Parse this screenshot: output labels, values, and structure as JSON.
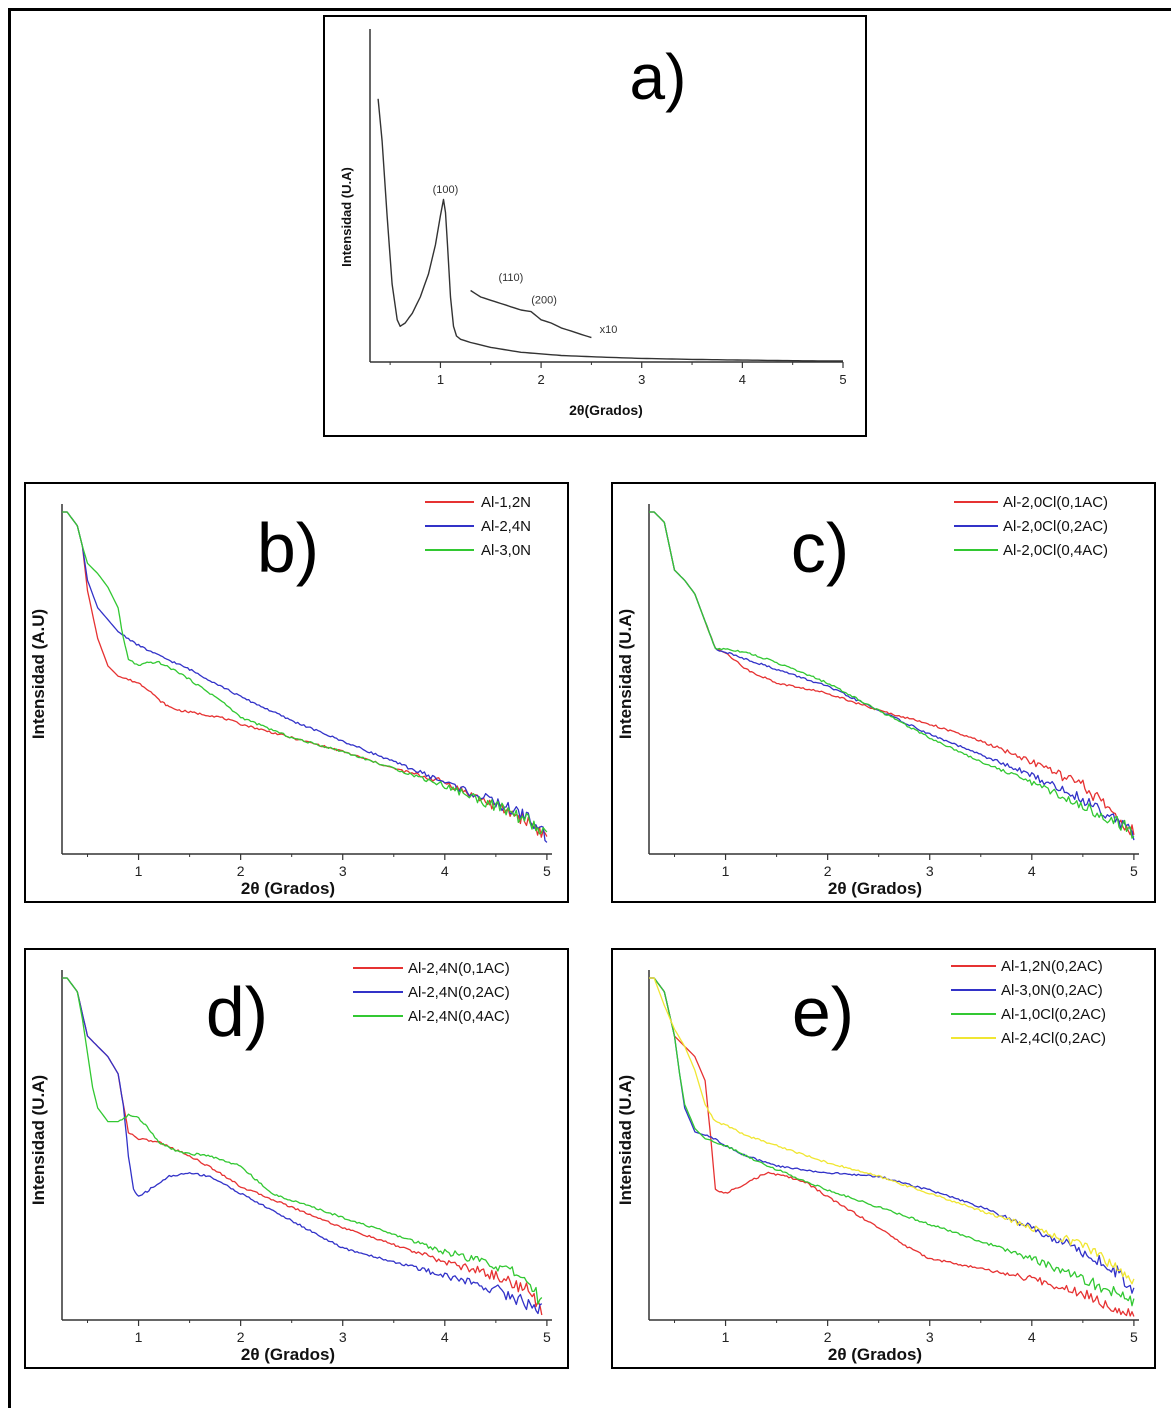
{
  "chart_data": [
    {
      "panel_label": "a)",
      "type": "line",
      "xlabel": "2θ(Grados)",
      "ylabel": "Intensidad (U.A)",
      "xlim": [
        0.3,
        5
      ],
      "ylim": [
        0,
        100
      ],
      "xticks": [
        "1",
        "2",
        "3",
        "4",
        "5"
      ],
      "xtick_values": [
        1,
        2,
        3,
        4,
        5
      ],
      "annotations": [
        {
          "text": "(100)",
          "x": 1.05,
          "y": 52
        },
        {
          "text": "(110)",
          "x": 1.7,
          "y": 25
        },
        {
          "text": "(200)",
          "x": 2.03,
          "y": 18
        },
        {
          "text": "x10",
          "x": 2.67,
          "y": 9
        }
      ],
      "series": [
        {
          "color": "#333333",
          "x": [
            0.38,
            0.42,
            0.47,
            0.52,
            0.57,
            0.6,
            0.65,
            0.72,
            0.8,
            0.88,
            0.95,
            1.0,
            1.03,
            1.05,
            1.07,
            1.1,
            1.13,
            1.16,
            1.2,
            1.3,
            1.5,
            1.8,
            2.2,
            2.6,
            3.0,
            3.5,
            4.0,
            4.5,
            5.0
          ],
          "y": [
            81,
            68,
            45,
            24,
            13,
            11,
            12,
            15,
            20,
            27,
            36,
            45,
            50,
            46,
            36,
            20,
            11,
            8,
            7,
            6,
            4.5,
            3,
            2,
            1.5,
            1.1,
            0.8,
            0.6,
            0.4,
            0.3
          ]
        },
        {
          "color": "#333333",
          "x": [
            1.3,
            1.4,
            1.5,
            1.6,
            1.7,
            1.8,
            1.9,
            2.0,
            2.1,
            2.2,
            2.3,
            2.4,
            2.5
          ],
          "y": [
            22,
            20,
            19,
            18,
            17,
            16,
            15.5,
            13,
            12,
            10.5,
            9.5,
            8.5,
            7.5
          ]
        }
      ]
    },
    {
      "panel_label": "b)",
      "type": "line",
      "xlabel": "2θ (Grados)",
      "ylabel": "Intensidad (A.U)",
      "xlim": [
        0.25,
        5.05
      ],
      "ylim": [
        0,
        100
      ],
      "xticks": [
        "1",
        "2",
        "3",
        "4",
        "5"
      ],
      "xtick_values": [
        1,
        2,
        3,
        4,
        5
      ],
      "legend_position": "top-right",
      "series": [
        {
          "name": "Al-1,2N",
          "color": "#e63232",
          "x": [
            0.25,
            0.3,
            0.4,
            0.45,
            0.5,
            0.6,
            0.7,
            0.8,
            0.9,
            1.0,
            1.1,
            1.2,
            1.3,
            1.4,
            1.6,
            1.8,
            2.0,
            2.5,
            3.0,
            3.5,
            4.0,
            4.5,
            4.8,
            5.0
          ],
          "y": [
            100,
            100,
            96,
            90,
            77,
            63,
            55,
            52,
            51,
            50,
            48,
            45,
            43,
            42,
            41,
            40,
            38,
            34,
            30,
            25,
            21,
            14,
            10,
            5
          ]
        },
        {
          "name": "Al-2,4N",
          "color": "#3232c8",
          "x": [
            0.25,
            0.3,
            0.4,
            0.45,
            0.5,
            0.6,
            0.8,
            1.0,
            1.2,
            1.5,
            2.0,
            2.5,
            3.0,
            3.5,
            4.0,
            4.5,
            4.8,
            5.0
          ],
          "y": [
            100,
            100,
            96,
            90,
            80,
            72,
            65,
            61,
            58,
            54,
            46,
            39,
            33,
            27,
            21,
            15,
            11,
            5
          ]
        },
        {
          "name": "Al-3,0N",
          "color": "#32c832",
          "x": [
            0.25,
            0.3,
            0.4,
            0.45,
            0.5,
            0.6,
            0.7,
            0.8,
            0.85,
            0.9,
            1.0,
            1.1,
            1.2,
            1.4,
            1.6,
            1.8,
            2.0,
            2.5,
            3.0,
            3.5,
            4.0,
            4.5,
            4.8,
            5.0
          ],
          "y": [
            100,
            100,
            96,
            90,
            85,
            82,
            78,
            72,
            63,
            57,
            55,
            56,
            56,
            53,
            49,
            45,
            40,
            34,
            30,
            25,
            20,
            14,
            10,
            5
          ]
        }
      ]
    },
    {
      "panel_label": "c)",
      "type": "line",
      "xlabel": "2θ (Grados)",
      "ylabel": "Intensidad (U.A)",
      "xlim": [
        0.25,
        5.05
      ],
      "ylim": [
        0,
        100
      ],
      "xticks": [
        "1",
        "2",
        "3",
        "4",
        "5"
      ],
      "xtick_values": [
        1,
        2,
        3,
        4,
        5
      ],
      "legend_position": "top-right",
      "series": [
        {
          "name": "Al-2,0Cl(0,1AC)",
          "color": "#e63232",
          "x": [
            0.25,
            0.3,
            0.4,
            0.45,
            0.5,
            0.6,
            0.7,
            0.8,
            0.9,
            1.0,
            1.2,
            1.5,
            2.0,
            2.5,
            3.0,
            3.5,
            4.0,
            4.5,
            4.8,
            5.0
          ],
          "y": [
            100,
            100,
            97,
            90,
            83,
            80,
            76,
            68,
            60,
            59,
            54,
            50,
            47,
            42,
            38,
            33,
            27,
            20,
            12,
            6
          ]
        },
        {
          "name": "Al-2,0Cl(0,2AC)",
          "color": "#3232c8",
          "x": [
            0.25,
            0.3,
            0.4,
            0.45,
            0.5,
            0.6,
            0.7,
            0.8,
            0.9,
            1.0,
            1.2,
            1.5,
            2.0,
            2.5,
            3.0,
            3.5,
            4.0,
            4.5,
            4.8,
            5.0
          ],
          "y": [
            100,
            100,
            97,
            90,
            83,
            80,
            76,
            68,
            60,
            59,
            57,
            54,
            49,
            42,
            35,
            29,
            23,
            16,
            11,
            6
          ]
        },
        {
          "name": "Al-2,0Cl(0,4AC)",
          "color": "#32c832",
          "x": [
            0.25,
            0.3,
            0.4,
            0.45,
            0.5,
            0.6,
            0.7,
            0.8,
            0.9,
            1.0,
            1.2,
            1.5,
            2.0,
            2.5,
            3.0,
            3.5,
            4.0,
            4.5,
            4.8,
            5.0
          ],
          "y": [
            100,
            100,
            97,
            90,
            83,
            80,
            76,
            68,
            60,
            60,
            59,
            56,
            50,
            42,
            34,
            27,
            21,
            14,
            10,
            6
          ]
        }
      ]
    },
    {
      "panel_label": "d)",
      "type": "line",
      "xlabel": "2θ (Grados)",
      "ylabel": "Intensidad (U.A)",
      "xlim": [
        0.25,
        5.05
      ],
      "ylim": [
        0,
        100
      ],
      "xticks": [
        "1",
        "2",
        "3",
        "4",
        "5"
      ],
      "xtick_values": [
        1,
        2,
        3,
        4,
        5
      ],
      "legend_position": "top-right",
      "series": [
        {
          "name": "Al-2,4N(0,1AC)",
          "color": "#e63232",
          "x": [
            0.25,
            0.3,
            0.4,
            0.5,
            0.6,
            0.7,
            0.8,
            0.85,
            0.9,
            1.0,
            1.2,
            1.5,
            1.8,
            2.0,
            2.5,
            3.0,
            3.5,
            4.0,
            4.5,
            4.8,
            4.95
          ],
          "y": [
            100,
            100,
            96,
            83,
            80,
            77,
            72,
            63,
            55,
            53,
            52,
            48,
            43,
            39,
            33,
            27,
            22,
            17,
            13,
            9,
            3
          ]
        },
        {
          "name": "Al-2,4N(0,2AC)",
          "color": "#3232c8",
          "x": [
            0.25,
            0.3,
            0.4,
            0.5,
            0.6,
            0.7,
            0.8,
            0.85,
            0.9,
            0.95,
            1.0,
            1.1,
            1.3,
            1.5,
            1.7,
            2.0,
            2.5,
            3.0,
            3.5,
            4.0,
            4.5,
            4.8,
            4.95
          ],
          "y": [
            100,
            100,
            96,
            83,
            80,
            77,
            72,
            63,
            48,
            38,
            36,
            38,
            42,
            43,
            42,
            37,
            29,
            21,
            17,
            13,
            9,
            5,
            3
          ]
        },
        {
          "name": "Al-2,4N(0,4AC)",
          "color": "#32c832",
          "x": [
            0.25,
            0.3,
            0.4,
            0.45,
            0.5,
            0.55,
            0.6,
            0.7,
            0.8,
            0.9,
            1.0,
            1.1,
            1.2,
            1.4,
            1.7,
            2.0,
            2.3,
            2.5,
            3.0,
            3.5,
            4.0,
            4.5,
            4.8,
            4.95
          ],
          "y": [
            100,
            100,
            96,
            88,
            78,
            68,
            62,
            58,
            58,
            60,
            59,
            56,
            52,
            49,
            48,
            45,
            37,
            35,
            30,
            25,
            20,
            16,
            12,
            5
          ]
        }
      ]
    },
    {
      "panel_label": "e)",
      "type": "line",
      "xlabel": "2θ (Grados)",
      "ylabel": "Intensidad (U.A)",
      "xlim": [
        0.25,
        5.05
      ],
      "ylim": [
        0,
        100
      ],
      "xticks": [
        "1",
        "2",
        "3",
        "4",
        "5"
      ],
      "xtick_values": [
        1,
        2,
        3,
        4,
        5
      ],
      "legend_position": "top-right",
      "series": [
        {
          "name": "Al-1,2N(0,2AC)",
          "color": "#e63232",
          "x": [
            0.25,
            0.3,
            0.4,
            0.5,
            0.6,
            0.7,
            0.8,
            0.85,
            0.9,
            1.0,
            1.2,
            1.4,
            1.6,
            1.8,
            2.0,
            2.5,
            2.8,
            3.0,
            3.5,
            4.0,
            4.5,
            4.8,
            5.0
          ],
          "y": [
            100,
            100,
            96,
            83,
            80,
            77,
            70,
            55,
            38,
            37,
            40,
            43,
            42,
            40,
            36,
            27,
            21,
            18,
            15,
            12,
            8,
            4,
            2
          ]
        },
        {
          "name": "Al-3,0N(0,2AC)",
          "color": "#3232c8",
          "x": [
            0.25,
            0.3,
            0.4,
            0.5,
            0.55,
            0.6,
            0.7,
            0.8,
            0.9,
            1.0,
            1.2,
            1.5,
            2.0,
            2.5,
            3.0,
            3.5,
            4.0,
            4.5,
            4.8,
            5.0
          ],
          "y": [
            100,
            100,
            96,
            83,
            72,
            62,
            55,
            54,
            53,
            51,
            48,
            45,
            43,
            42,
            38,
            33,
            27,
            20,
            15,
            9
          ]
        },
        {
          "name": "Al-1,0Cl(0,2AC)",
          "color": "#32c832",
          "x": [
            0.25,
            0.3,
            0.4,
            0.5,
            0.55,
            0.6,
            0.7,
            0.8,
            0.9,
            1.0,
            1.2,
            1.5,
            2.0,
            2.5,
            3.0,
            3.5,
            4.0,
            4.5,
            4.8,
            5.0
          ],
          "y": [
            100,
            100,
            96,
            83,
            72,
            63,
            56,
            53,
            52,
            51,
            48,
            44,
            38,
            33,
            28,
            23,
            18,
            12,
            8,
            5
          ]
        },
        {
          "name": "Al-2,4Cl(0,2AC)",
          "color": "#f0e632",
          "x": [
            0.25,
            0.3,
            0.4,
            0.5,
            0.6,
            0.7,
            0.8,
            0.9,
            1.0,
            1.2,
            1.5,
            2.0,
            2.5,
            3.0,
            3.5,
            4.0,
            4.5,
            4.8,
            5.0
          ],
          "y": [
            100,
            100,
            92,
            85,
            80,
            73,
            63,
            58,
            57,
            54,
            51,
            46,
            42,
            37,
            32,
            27,
            22,
            16,
            11
          ]
        }
      ]
    }
  ]
}
